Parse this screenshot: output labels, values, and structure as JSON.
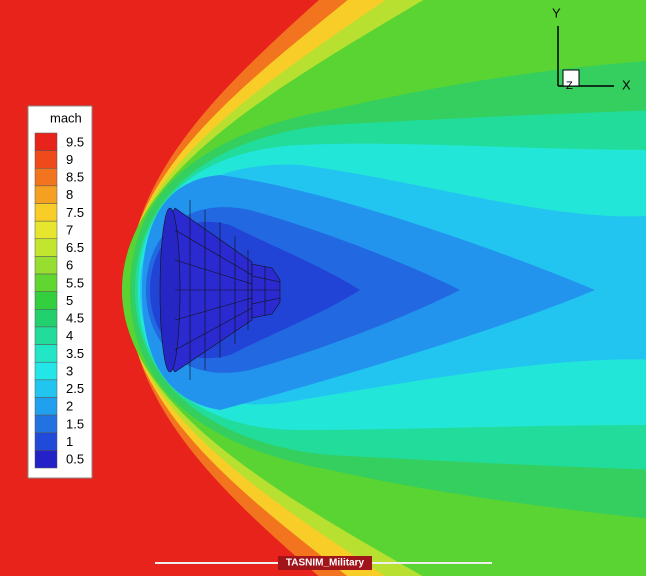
{
  "legend": {
    "title": "mach",
    "items": [
      {
        "label": 9.5,
        "color": "#e8231c"
      },
      {
        "label": 9,
        "color": "#ee4a1c"
      },
      {
        "label": 8.5,
        "color": "#f2741e"
      },
      {
        "label": 8,
        "color": "#f5a021"
      },
      {
        "label": 7.5,
        "color": "#f8cd28"
      },
      {
        "label": 7,
        "color": "#e6e62e"
      },
      {
        "label": 6.5,
        "color": "#c2e630"
      },
      {
        "label": 6,
        "color": "#98de30"
      },
      {
        "label": 5.5,
        "color": "#62d630"
      },
      {
        "label": 5,
        "color": "#34cf3e"
      },
      {
        "label": 4.5,
        "color": "#22d06e"
      },
      {
        "label": 4,
        "color": "#22dc9c"
      },
      {
        "label": 3.5,
        "color": "#22e6c6"
      },
      {
        "label": 3,
        "color": "#22e6e8"
      },
      {
        "label": 2.5,
        "color": "#22c4f0"
      },
      {
        "label": 2,
        "color": "#22a0f0"
      },
      {
        "label": 1.5,
        "color": "#2272e2"
      },
      {
        "label": 1,
        "color": "#224ad8"
      },
      {
        "label": 0.5,
        "color": "#2222c8"
      }
    ]
  },
  "axes": {
    "y": "Y",
    "x": "X",
    "z": "Z"
  },
  "watermark": "TASNIM_Military"
}
